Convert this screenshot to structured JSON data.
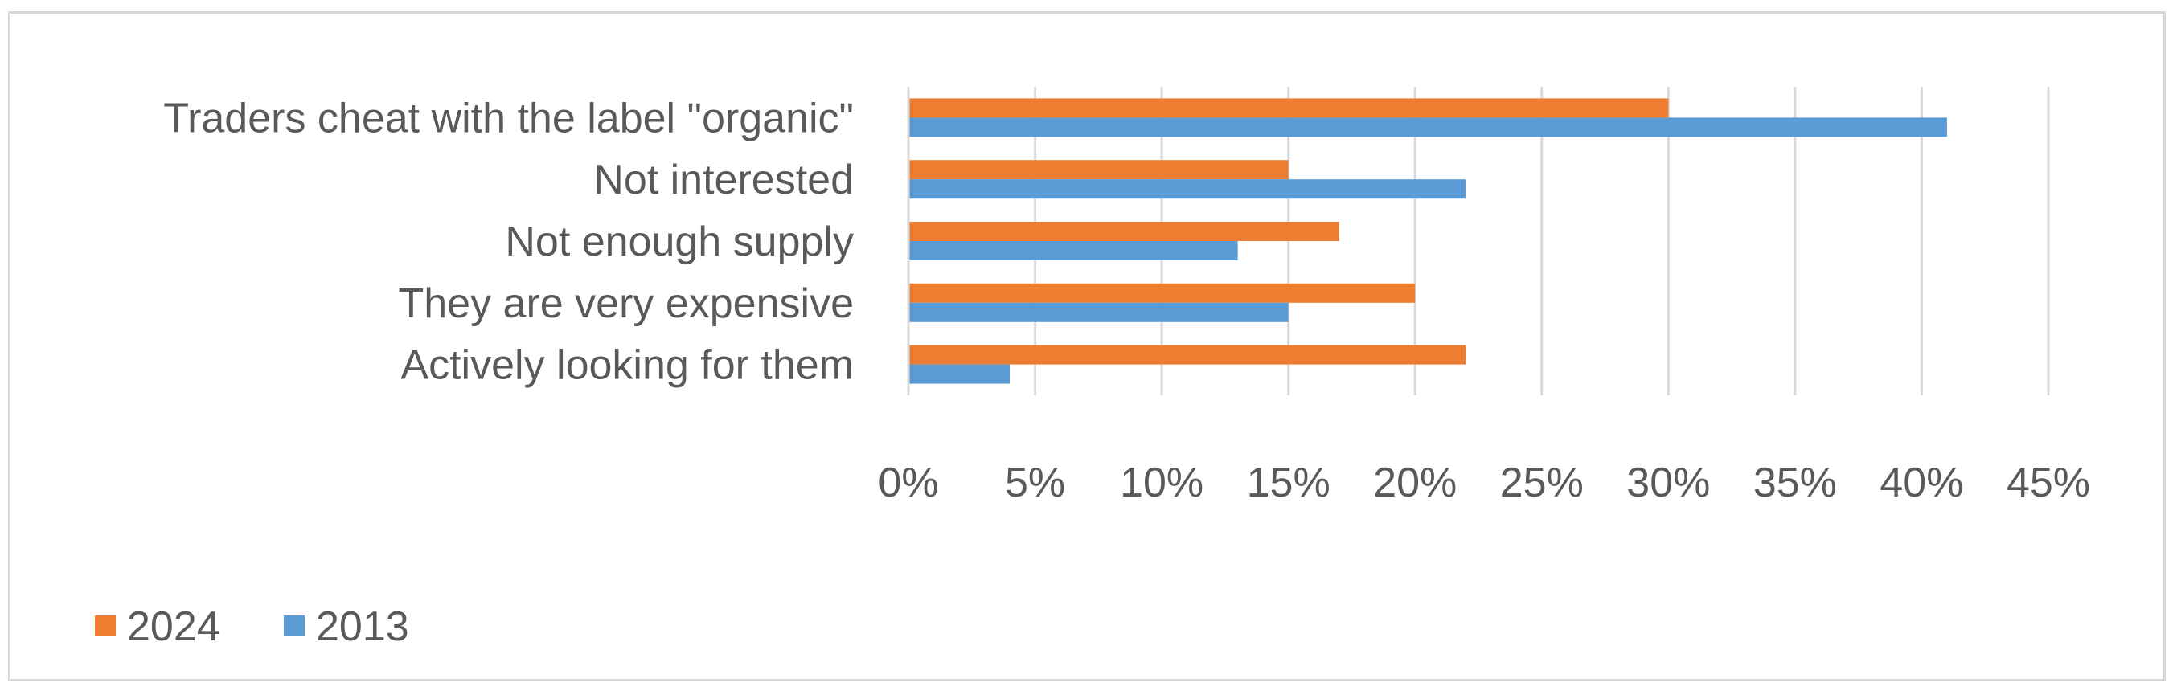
{
  "chart_data": {
    "type": "bar",
    "orientation": "horizontal",
    "categories": [
      "Traders cheat with the label \"organic\"",
      "Not interested",
      "Not enough supply",
      "They are very expensive",
      "Actively looking for them"
    ],
    "series": [
      {
        "name": "2024",
        "color": "#ED7D31",
        "values": [
          30,
          15,
          17,
          20,
          22
        ]
      },
      {
        "name": "2013",
        "color": "#5B9BD5",
        "values": [
          41,
          22,
          13,
          15,
          4
        ]
      }
    ],
    "xlim": [
      0,
      45
    ],
    "xticks": [
      0,
      5,
      10,
      15,
      20,
      25,
      30,
      35,
      40,
      45
    ],
    "xtick_labels": [
      "0%",
      "5%",
      "10%",
      "15%",
      "20%",
      "25%",
      "30%",
      "35%",
      "40%",
      "45%"
    ],
    "grid": true,
    "legend_position": "bottom-left",
    "title": "",
    "xlabel": "",
    "ylabel": ""
  }
}
